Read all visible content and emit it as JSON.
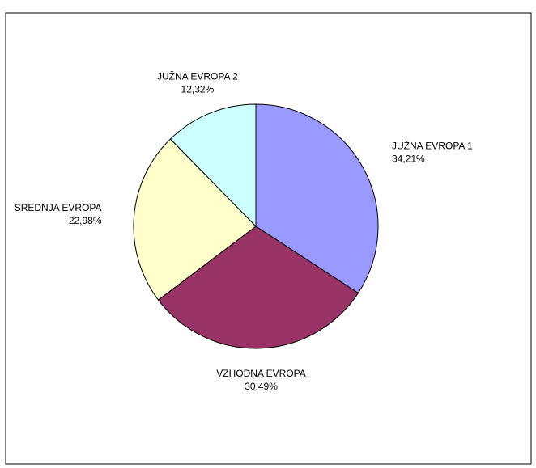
{
  "chart_data": {
    "type": "pie",
    "categories": [
      "JUŽNA EVROPA 1",
      "VZHODNA EVROPA",
      "SREDNJA EVROPA",
      "JUŽNA EVROPA 2"
    ],
    "values": [
      34.21,
      30.49,
      22.98,
      12.32
    ],
    "value_labels": [
      "34,21%",
      "30,49%",
      "22,98%",
      "12,32%"
    ],
    "colors": [
      "#9999ff",
      "#993366",
      "#ffffcc",
      "#ccffff"
    ]
  }
}
